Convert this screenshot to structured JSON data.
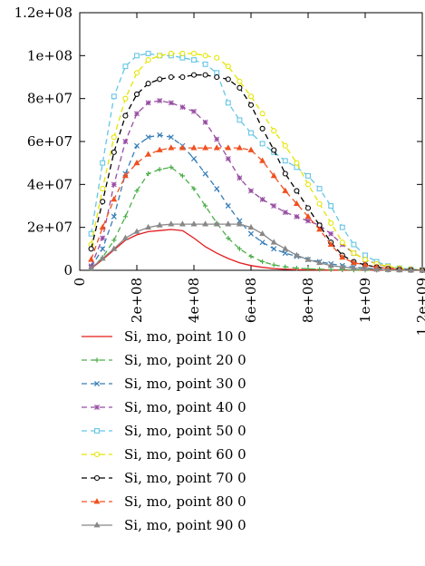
{
  "chart_data": {
    "type": "line",
    "xlim": [
      0,
      1200000000
    ],
    "ylim": [
      0,
      120000000
    ],
    "x_ticks": [
      {
        "value": 0,
        "label": "0"
      },
      {
        "value": 200000000,
        "label": "2e+08"
      },
      {
        "value": 400000000,
        "label": "4e+08"
      },
      {
        "value": 600000000,
        "label": "6e+08"
      },
      {
        "value": 800000000,
        "label": "8e+08"
      },
      {
        "value": 1000000000,
        "label": "1e+09"
      },
      {
        "value": 1200000000,
        "label": "1.2e+09"
      }
    ],
    "y_ticks": [
      {
        "value": 0,
        "label": "0"
      },
      {
        "value": 20000000,
        "label": "2e+07"
      },
      {
        "value": 40000000,
        "label": "4e+07"
      },
      {
        "value": 60000000,
        "label": "6e+07"
      },
      {
        "value": 80000000,
        "label": "8e+07"
      },
      {
        "value": 100000000,
        "label": "1e+08"
      },
      {
        "value": 120000000,
        "label": "1.2e+08"
      }
    ],
    "grid": false,
    "legend_position": "below",
    "x": [
      40000000,
      80000000,
      120000000,
      160000000,
      200000000,
      240000000,
      280000000,
      320000000,
      360000000,
      400000000,
      440000000,
      480000000,
      520000000,
      560000000,
      600000000,
      640000000,
      680000000,
      720000000,
      760000000,
      800000000,
      840000000,
      880000000,
      920000000,
      960000000,
      1000000000,
      1040000000,
      1080000000,
      1120000000,
      1160000000,
      1200000000
    ],
    "series": [
      {
        "name": "Si, mo, point 10 0",
        "color": "#e41a1c",
        "dash": "",
        "marker": "none",
        "values": [
          800000,
          5000000,
          9500000,
          14000000,
          16500000,
          18000000,
          18500000,
          19000000,
          18500000,
          15000000,
          11000000,
          8000000,
          5500000,
          3500000,
          2200000,
          1400000,
          800000,
          500000,
          300000,
          200000,
          150000,
          100000,
          80000,
          60000,
          50000,
          40000,
          30000,
          20000,
          10000,
          5000
        ]
      },
      {
        "name": "Si, mo, point 20 0",
        "color": "#4daf4a",
        "dash": "6,4",
        "marker": "plus",
        "values": [
          1000000,
          6000000,
          14000000,
          25000000,
          37000000,
          45000000,
          47000000,
          48000000,
          44000000,
          38000000,
          30000000,
          22000000,
          15000000,
          10000000,
          6500000,
          4000000,
          2500000,
          1600000,
          1000000,
          700000,
          500000,
          300000,
          200000,
          150000,
          100000,
          80000,
          60000,
          40000,
          20000,
          10000
        ]
      },
      {
        "name": "Si, mo, point 30 0",
        "color": "#377eb8",
        "dash": "6,4",
        "marker": "x",
        "values": [
          1500000,
          10000000,
          25000000,
          45000000,
          58000000,
          62000000,
          63000000,
          62000000,
          58000000,
          52000000,
          45000000,
          38000000,
          30000000,
          23000000,
          17000000,
          13000000,
          10000000,
          8000000,
          6500000,
          5000000,
          4000000,
          3000000,
          2200000,
          1500000,
          1000000,
          700000,
          400000,
          200000,
          100000,
          50000
        ]
      },
      {
        "name": "Si, mo, point 40 0",
        "color": "#984ea3",
        "dash": "6,4",
        "marker": "star",
        "values": [
          2000000,
          15000000,
          40000000,
          60000000,
          73000000,
          78000000,
          79000000,
          78000000,
          76000000,
          74000000,
          69000000,
          61000000,
          52000000,
          43000000,
          37000000,
          33000000,
          30000000,
          27000000,
          25000000,
          23000000,
          21000000,
          17000000,
          12000000,
          8000000,
          5000000,
          3000000,
          1500000,
          800000,
          300000,
          100000
        ]
      },
      {
        "name": "Si, mo, point 50 0",
        "color": "#66c6e6",
        "dash": "6,4",
        "marker": "square",
        "values": [
          17000000,
          50000000,
          81000000,
          95000000,
          100000000,
          101000000,
          100000000,
          100000000,
          99000000,
          98000000,
          96000000,
          92000000,
          78000000,
          70000000,
          64000000,
          59000000,
          55000000,
          51000000,
          48000000,
          44000000,
          38000000,
          30000000,
          20000000,
          12000000,
          7000000,
          4000000,
          2000000,
          1000000,
          500000,
          200000
        ]
      },
      {
        "name": "Si, mo, point 60 0",
        "color": "#e5e500",
        "dash": "6,4",
        "marker": "circle",
        "values": [
          12000000,
          38000000,
          62000000,
          80000000,
          92000000,
          98000000,
          100000000,
          101000000,
          101000000,
          101000000,
          100000000,
          99000000,
          95000000,
          88000000,
          81000000,
          73000000,
          65000000,
          58000000,
          50000000,
          40000000,
          31000000,
          22000000,
          13000000,
          8000000,
          5000000,
          3000000,
          1800000,
          1000000,
          500000,
          200000
        ]
      },
      {
        "name": "Si, mo, point 70 0",
        "color": "#000000",
        "dash": "6,4",
        "marker": "circle",
        "values": [
          10000000,
          32000000,
          55000000,
          72000000,
          82000000,
          87000000,
          89000000,
          90000000,
          90000000,
          91000000,
          91000000,
          90000000,
          89000000,
          85000000,
          77000000,
          66000000,
          56000000,
          45000000,
          37000000,
          29000000,
          21000000,
          13000000,
          7000000,
          4000000,
          2500000,
          1500000,
          800000,
          400000,
          200000,
          80000
        ]
      },
      {
        "name": "Si, mo, point 80 0",
        "color": "#f05020",
        "dash": "6,4",
        "marker": "triangle",
        "values": [
          5000000,
          20000000,
          33000000,
          44000000,
          50000000,
          54000000,
          56000000,
          57000000,
          57000000,
          57000000,
          57000000,
          57000000,
          57000000,
          57000000,
          56000000,
          51000000,
          44000000,
          37000000,
          31000000,
          25000000,
          19000000,
          12000000,
          6000000,
          3500000,
          2500000,
          1500000,
          800000,
          400000,
          200000,
          80000
        ]
      },
      {
        "name": "Si, mo, point 90 0",
        "color": "#888888",
        "dash": "",
        "marker": "triangle",
        "values": [
          1000000,
          5500000,
          10000000,
          15000000,
          18000000,
          20000000,
          21000000,
          21500000,
          21500000,
          21500000,
          21500000,
          21500000,
          21500000,
          21500000,
          20000000,
          17000000,
          13000000,
          10000000,
          7000000,
          5000000,
          3500000,
          2200000,
          1500000,
          1000000,
          700000,
          400000,
          200000,
          100000,
          50000,
          20000
        ]
      }
    ]
  }
}
